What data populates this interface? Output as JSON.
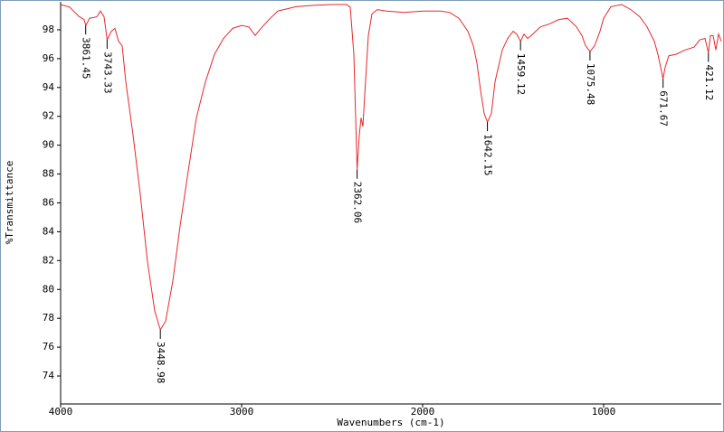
{
  "chart_data": {
    "type": "line",
    "xlabel": "Wavenumbers (cm-1)",
    "ylabel": "%Transmittance",
    "color": "#e8282a",
    "xlim": [
      4000,
      350
    ],
    "ylim": [
      72.06,
      99.94
    ],
    "xticks": [
      4000,
      3000,
      2000,
      1000
    ],
    "yticks": [
      74,
      76,
      78,
      80,
      82,
      84,
      86,
      88,
      90,
      92,
      94,
      96,
      98
    ],
    "x": [
      4000,
      3950,
      3900,
      3870,
      3861,
      3840,
      3800,
      3780,
      3760,
      3743,
      3720,
      3700,
      3680,
      3660,
      3640,
      3600,
      3560,
      3520,
      3480,
      3449,
      3420,
      3380,
      3340,
      3300,
      3250,
      3200,
      3150,
      3100,
      3050,
      3000,
      2960,
      2925,
      2900,
      2850,
      2800,
      2700,
      2600,
      2500,
      2420,
      2400,
      2380,
      2362,
      2350,
      2340,
      2330,
      2320,
      2300,
      2280,
      2250,
      2200,
      2100,
      2000,
      1900,
      1850,
      1800,
      1750,
      1720,
      1700,
      1680,
      1660,
      1642,
      1620,
      1600,
      1560,
      1530,
      1500,
      1480,
      1459,
      1440,
      1420,
      1400,
      1350,
      1300,
      1250,
      1200,
      1150,
      1120,
      1100,
      1075,
      1050,
      1020,
      1000,
      960,
      900,
      850,
      800,
      760,
      720,
      700,
      680,
      672,
      660,
      640,
      600,
      550,
      500,
      470,
      440,
      421,
      410,
      395,
      380,
      365,
      350
    ],
    "values": [
      99.75,
      99.57,
      98.94,
      98.7,
      98.3,
      98.8,
      98.9,
      99.3,
      98.9,
      97.3,
      97.9,
      98.1,
      97.2,
      96.9,
      94.4,
      90.7,
      86.6,
      81.9,
      78.5,
      77.2,
      77.8,
      80.6,
      84.4,
      87.8,
      91.9,
      94.4,
      96.3,
      97.4,
      98.1,
      98.3,
      98.2,
      97.6,
      98.0,
      98.7,
      99.3,
      99.6,
      99.7,
      99.75,
      99.75,
      99.57,
      96.3,
      88.3,
      90.7,
      91.9,
      91.3,
      93.5,
      97.6,
      99.1,
      99.4,
      99.3,
      99.2,
      99.3,
      99.3,
      99.2,
      98.8,
      97.9,
      96.9,
      95.7,
      93.8,
      92.2,
      91.6,
      92.2,
      94.4,
      96.6,
      97.4,
      97.9,
      97.7,
      97.2,
      97.7,
      97.4,
      97.6,
      98.2,
      98.4,
      98.7,
      98.8,
      98.2,
      97.6,
      96.9,
      96.5,
      96.9,
      97.9,
      98.8,
      99.6,
      99.75,
      99.4,
      98.9,
      98.2,
      97.2,
      96.3,
      95.1,
      94.6,
      95.4,
      96.2,
      96.3,
      96.6,
      96.8,
      97.3,
      97.4,
      96.4,
      97.6,
      97.6,
      96.6,
      97.7,
      97.2
    ],
    "peaks": {
      "x": [
        3861.45,
        3743.33,
        3448.98,
        2362.06,
        1642.15,
        1459.12,
        1075.48,
        671.67,
        421.12
      ],
      "y": [
        98.3,
        97.3,
        77.2,
        88.3,
        91.6,
        97.2,
        96.5,
        94.6,
        96.4
      ]
    }
  }
}
